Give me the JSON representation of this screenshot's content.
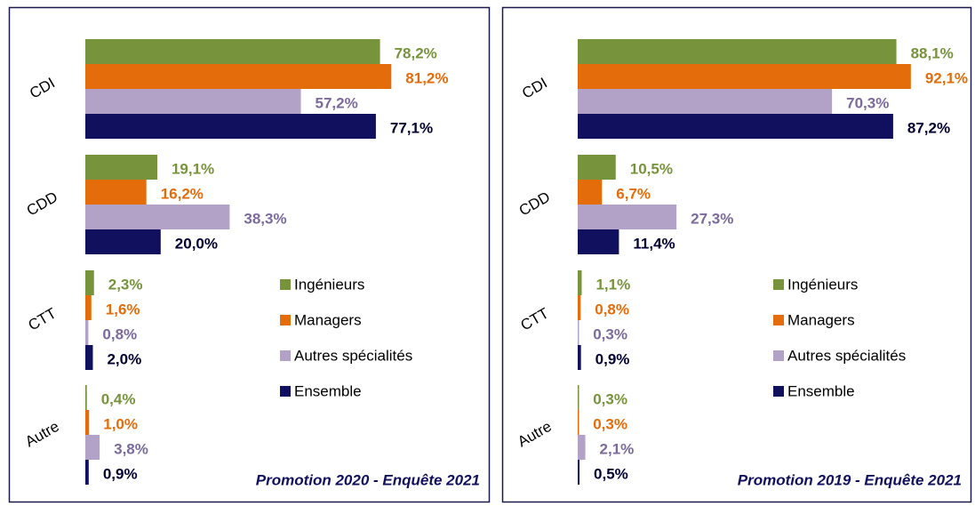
{
  "chart_data": [
    {
      "type": "bar",
      "orientation": "horizontal",
      "categories": [
        "CDI",
        "CDD",
        "CTT",
        "Autre"
      ],
      "series": [
        {
          "name": "Ingénieurs",
          "color": "#77933c",
          "values": [
            78.2,
            19.1,
            2.3,
            0.4
          ],
          "value_labels": [
            "78,2%",
            "19,1%",
            "2,3%",
            "0,4%"
          ]
        },
        {
          "name": "Managers",
          "color": "#e46c0a",
          "values": [
            81.2,
            16.2,
            1.6,
            1.0
          ],
          "value_labels": [
            "81,2%",
            "16,2%",
            "1,6%",
            "1,0%"
          ]
        },
        {
          "name": "Autres spécialités",
          "color": "#b3a2c7",
          "values": [
            57.2,
            38.3,
            0.8,
            3.8
          ],
          "value_labels": [
            "57,2%",
            "38,3%",
            "0,8%",
            "3,8%"
          ]
        },
        {
          "name": "Ensemble",
          "color": "#10105e",
          "values": [
            77.1,
            20.0,
            2.0,
            0.9
          ],
          "value_labels": [
            "77,1%",
            "20,0%",
            "2,0%",
            "0,9%"
          ]
        }
      ],
      "xlim": [
        0,
        100
      ],
      "annotation": "Promotion 2020 - Enquête 2021"
    },
    {
      "type": "bar",
      "orientation": "horizontal",
      "categories": [
        "CDI",
        "CDD",
        "CTT",
        "Autre"
      ],
      "series": [
        {
          "name": "Ingénieurs",
          "color": "#77933c",
          "values": [
            88.1,
            10.5,
            1.1,
            0.3
          ],
          "value_labels": [
            "88,1%",
            "10,5%",
            "1,1%",
            "0,3%"
          ]
        },
        {
          "name": "Managers",
          "color": "#e46c0a",
          "values": [
            92.1,
            6.7,
            0.8,
            0.3
          ],
          "value_labels": [
            "92,1%",
            "6,7%",
            "0,8%",
            "0,3%"
          ]
        },
        {
          "name": "Autres spécialités",
          "color": "#b3a2c7",
          "values": [
            70.3,
            27.3,
            0.3,
            2.1
          ],
          "value_labels": [
            "70,3%",
            "27,3%",
            "0,3%",
            "2,1%"
          ]
        },
        {
          "name": "Ensemble",
          "color": "#10105e",
          "values": [
            87.2,
            11.4,
            0.9,
            0.5
          ],
          "value_labels": [
            "87,2%",
            "11,4%",
            "0,9%",
            "0,5%"
          ]
        }
      ],
      "xlim": [
        0,
        100
      ],
      "annotation": "Promotion 2019 - Enquête 2021"
    }
  ]
}
